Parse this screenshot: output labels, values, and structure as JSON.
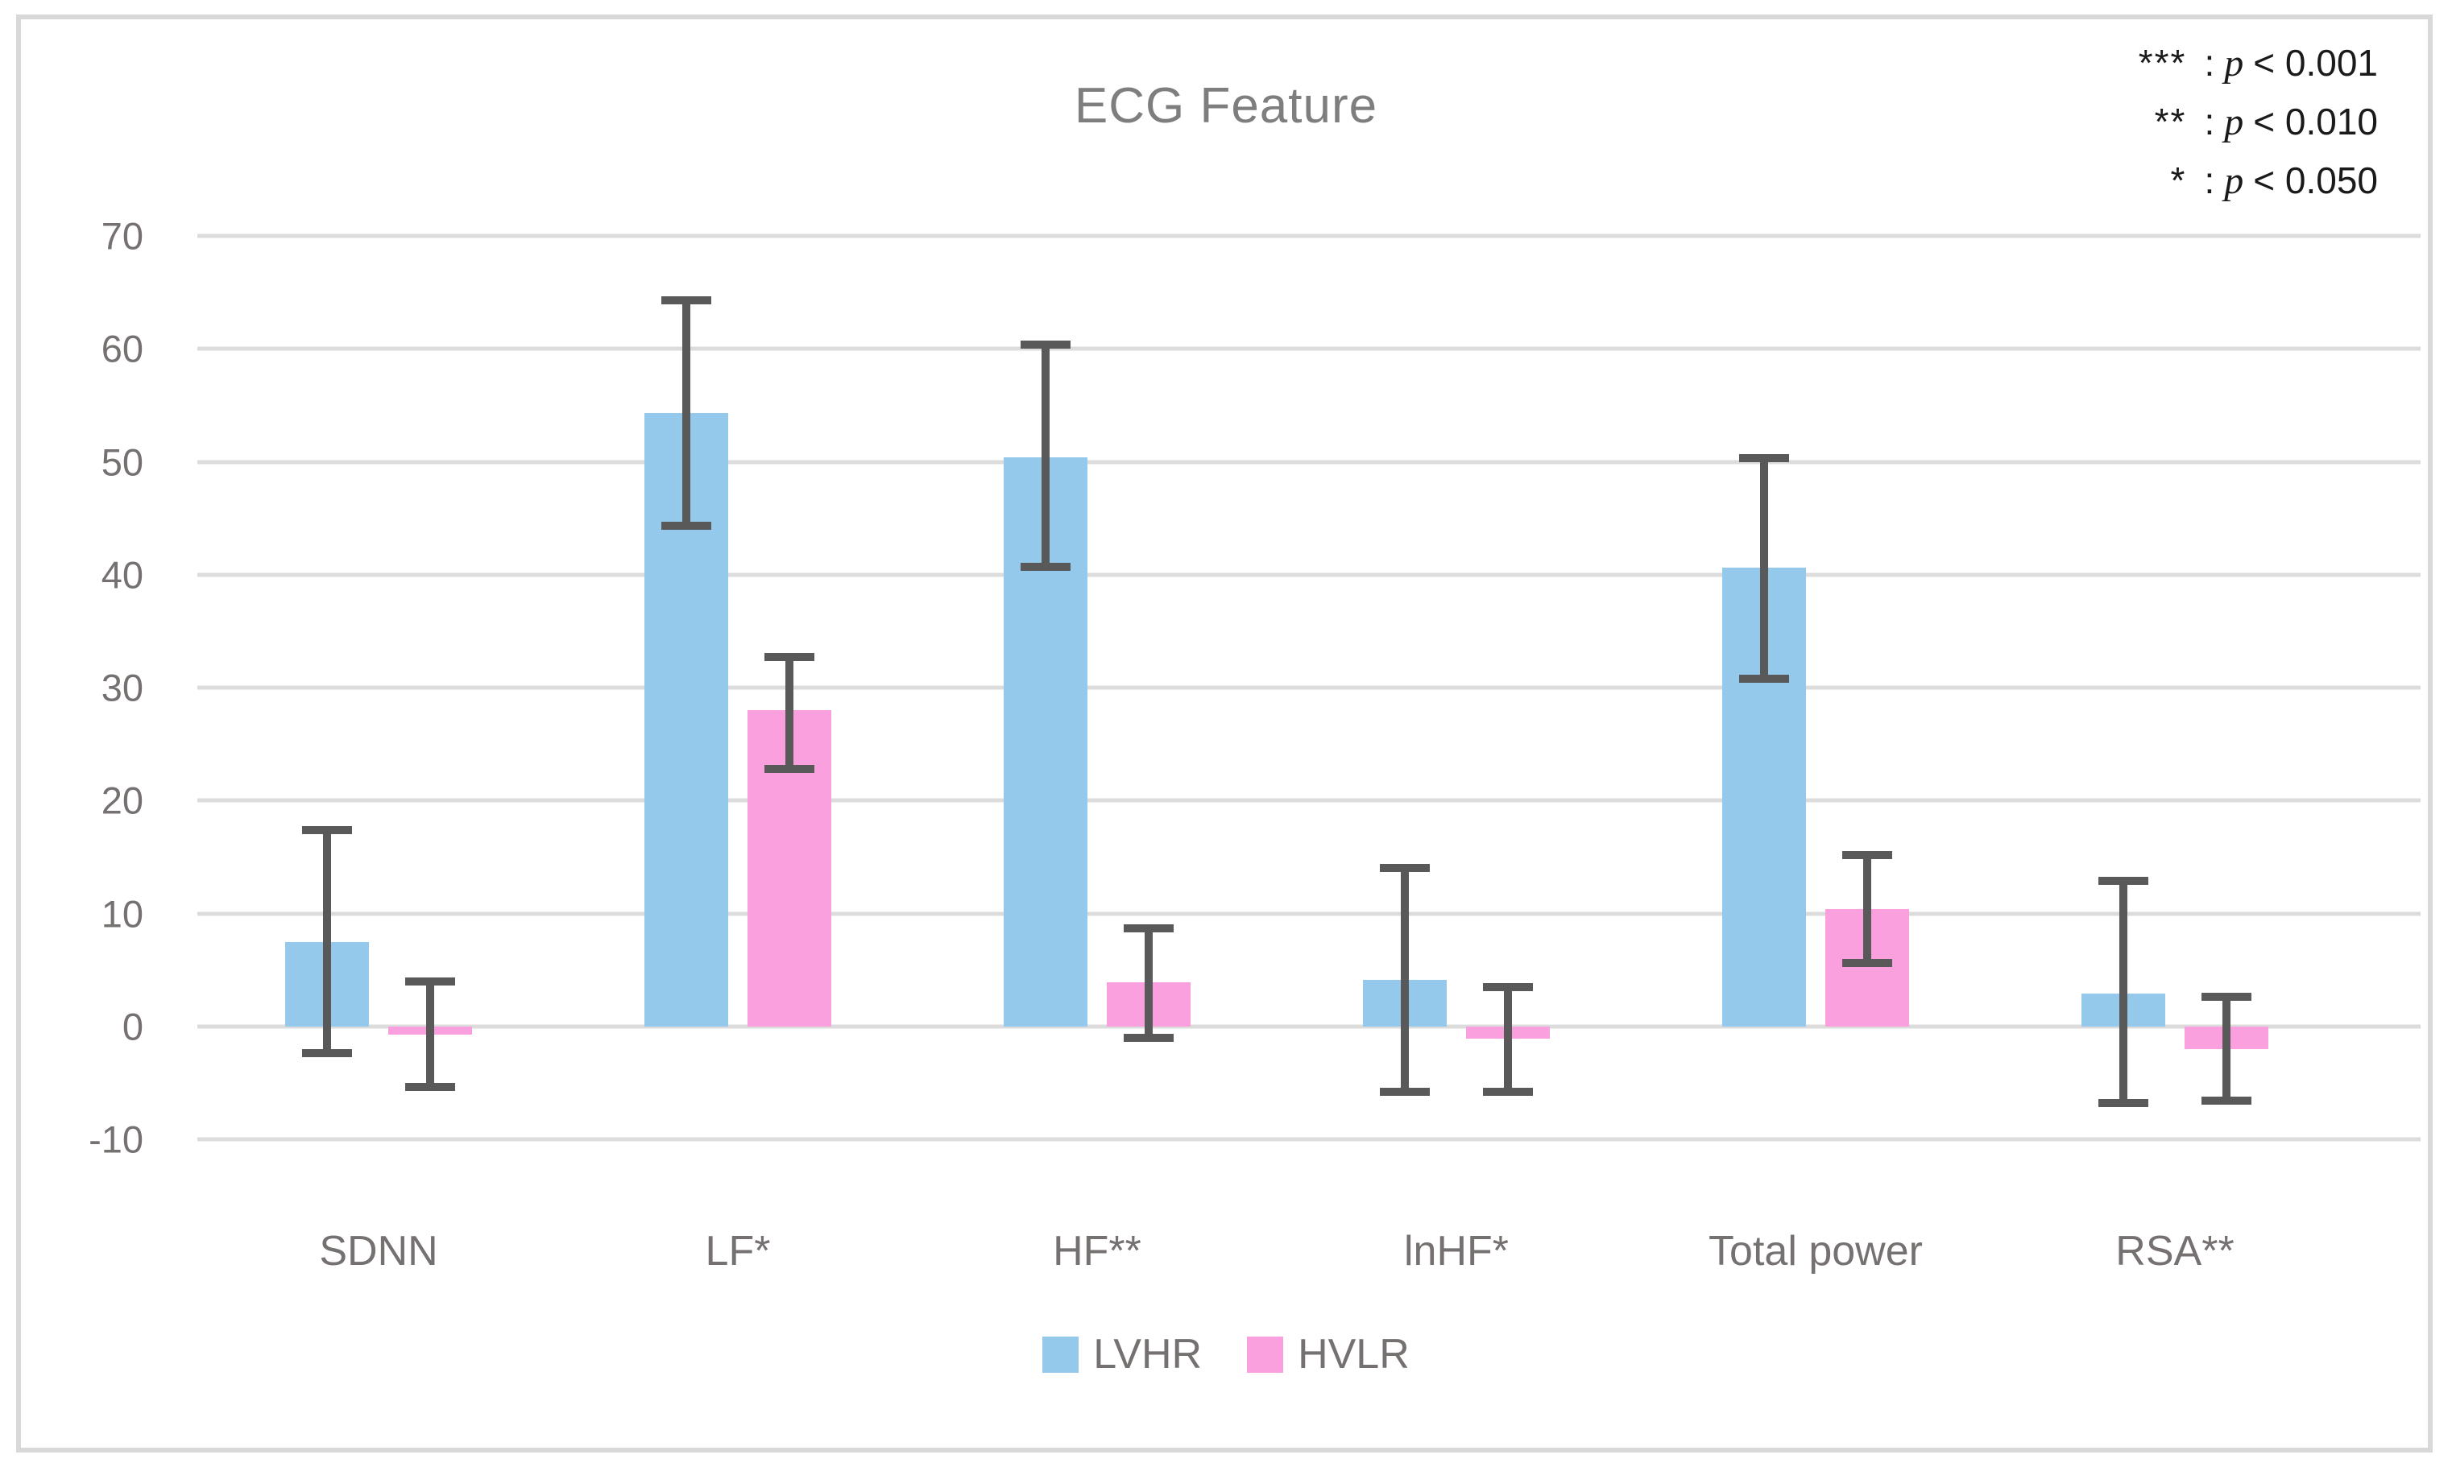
{
  "title": "ECG Feature",
  "significance": [
    {
      "symbol": "***",
      "sep": ":",
      "pvar": "p",
      "cond": "< 0.001"
    },
    {
      "symbol": "**",
      "sep": ":",
      "pvar": "p",
      "cond": "< 0.010"
    },
    {
      "symbol": "*",
      "sep": ":",
      "pvar": "p",
      "cond": "< 0.050"
    }
  ],
  "colors": {
    "lvhr_bar": "#94C9EC",
    "hvlr_bar": "#FAA0DE",
    "error_bar": "#595959",
    "gridline": "#DCDCDC",
    "axis_text": "#767171",
    "title_text": "#7E7E7E",
    "border": "#D8D8D8",
    "significance_text": "#1A1A1A"
  },
  "chart_data": {
    "type": "bar",
    "title": "ECG Feature",
    "categories": [
      "SDNN",
      "LF*",
      "HF**",
      "lnHF*",
      "Total power",
      "RSA**"
    ],
    "series": [
      {
        "name": "LVHR",
        "color": "#94C9EC",
        "values": [
          7.5,
          54.3,
          50.4,
          4.1,
          40.6,
          2.9
        ],
        "err_low": [
          -2.4,
          44.3,
          40.7,
          -5.8,
          30.8,
          -6.8
        ],
        "err_high": [
          17.4,
          64.3,
          60.4,
          14.0,
          50.3,
          12.9
        ]
      },
      {
        "name": "HVLR",
        "color": "#FAA0DE",
        "values": [
          -0.7,
          28.0,
          3.9,
          -1.1,
          10.4,
          -2.0
        ],
        "err_low": [
          -5.4,
          22.8,
          -1.0,
          -5.8,
          5.6,
          -6.6
        ],
        "err_high": [
          4.0,
          32.7,
          8.7,
          3.5,
          15.2,
          2.6
        ]
      }
    ],
    "ylim": [
      -10,
      70
    ],
    "yticks": [
      70,
      60,
      50,
      40,
      30,
      20,
      10,
      0,
      -10
    ],
    "grid": true,
    "error_bars": true,
    "legend_position": "bottom"
  }
}
